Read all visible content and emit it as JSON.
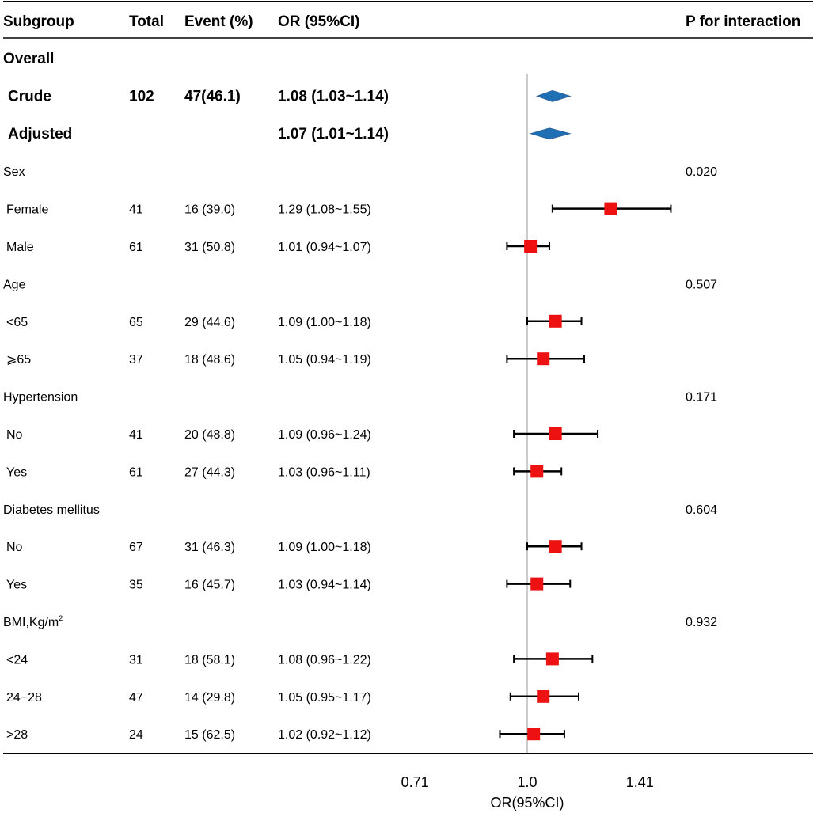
{
  "chart_data": {
    "type": "forest",
    "headers": {
      "subgroup": "Subgroup",
      "total": "Total",
      "event": "Event (%)",
      "or": "OR (95%CI)",
      "p": "P for interaction"
    },
    "rows": [
      {
        "kind": "section",
        "label": "Overall",
        "bold": true
      },
      {
        "kind": "summary",
        "label": "Crude",
        "total": "102",
        "event": "47(46.1)",
        "or_text": "1.08 (1.03~1.14)",
        "or": 1.08,
        "lo": 1.03,
        "hi": 1.14
      },
      {
        "kind": "summary",
        "label": "Adjusted",
        "total": "",
        "event": "",
        "or_text": "1.07 (1.01~1.14)",
        "or": 1.07,
        "lo": 1.01,
        "hi": 1.14
      },
      {
        "kind": "section",
        "label": "Sex",
        "p": "0.020"
      },
      {
        "kind": "item",
        "label": "Female",
        "total": "41",
        "event": "16 (39.0)",
        "or_text": "1.29 (1.08~1.55)",
        "or": 1.29,
        "lo": 1.08,
        "hi": 1.55
      },
      {
        "kind": "item",
        "label": "Male",
        "total": "61",
        "event": "31 (50.8)",
        "or_text": "1.01 (0.94~1.07)",
        "or": 1.01,
        "lo": 0.94,
        "hi": 1.07
      },
      {
        "kind": "section",
        "label": "Age",
        "p": "0.507"
      },
      {
        "kind": "item",
        "label": "<65",
        "total": "65",
        "event": "29 (44.6)",
        "or_text": "1.09 (1.00~1.18)",
        "or": 1.09,
        "lo": 1.0,
        "hi": 1.18
      },
      {
        "kind": "item",
        "label": "⩾65",
        "total": "37",
        "event": "18 (48.6)",
        "or_text": "1.05 (0.94~1.19)",
        "or": 1.05,
        "lo": 0.94,
        "hi": 1.19
      },
      {
        "kind": "section",
        "label": "Hypertension",
        "p": "0.171"
      },
      {
        "kind": "item",
        "label": "No",
        "total": "41",
        "event": "20 (48.8)",
        "or_text": "1.09 (0.96~1.24)",
        "or": 1.09,
        "lo": 0.96,
        "hi": 1.24
      },
      {
        "kind": "item",
        "label": "Yes",
        "total": "61",
        "event": "27 (44.3)",
        "or_text": "1.03 (0.96~1.11)",
        "or": 1.03,
        "lo": 0.96,
        "hi": 1.11
      },
      {
        "kind": "section",
        "label": "Diabetes mellitus",
        "p": "0.604"
      },
      {
        "kind": "item",
        "label": "No",
        "total": "67",
        "event": "31 (46.3)",
        "or_text": "1.09 (1.00~1.18)",
        "or": 1.09,
        "lo": 1.0,
        "hi": 1.18
      },
      {
        "kind": "item",
        "label": "Yes",
        "total": "35",
        "event": "16 (45.7)",
        "or_text": "1.03 (0.94~1.14)",
        "or": 1.03,
        "lo": 0.94,
        "hi": 1.14
      },
      {
        "kind": "section",
        "label": "BMI,Kg/m",
        "sup": "2",
        "p": "0.932"
      },
      {
        "kind": "item",
        "label": "<24",
        "total": "31",
        "event": "18 (58.1)",
        "or_text": "1.08 (0.96~1.22)",
        "or": 1.08,
        "lo": 0.96,
        "hi": 1.22
      },
      {
        "kind": "item",
        "label": "24−28",
        "total": "47",
        "event": "14 (29.8)",
        "or_text": "1.05 (0.95~1.17)",
        "or": 1.05,
        "lo": 0.95,
        "hi": 1.17
      },
      {
        "kind": "item",
        "label": ">28",
        "total": "24",
        "event": "15 (62.5)",
        "or_text": "1.02 (0.92~1.12)",
        "or": 1.02,
        "lo": 0.92,
        "hi": 1.12
      }
    ],
    "xaxis": {
      "label": "OR(95%CI)",
      "scale": "log",
      "reference": 1.0,
      "ticks": [
        {
          "value": 0.71,
          "label": "0.71"
        },
        {
          "value": 1.0,
          "label": "1.0"
        },
        {
          "value": 1.41,
          "label": "1.41"
        }
      ],
      "range": [
        0.71,
        1.62
      ]
    },
    "colors": {
      "square": "#ee1111",
      "diamond": "#1f6fb5",
      "reference": "#bbbbbb",
      "line": "#000000"
    }
  }
}
